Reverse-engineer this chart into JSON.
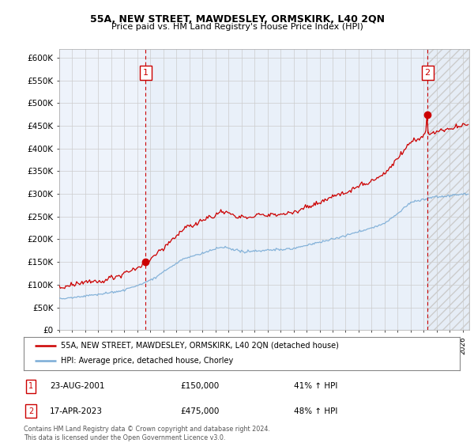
{
  "title": "55A, NEW STREET, MAWDESLEY, ORMSKIRK, L40 2QN",
  "subtitle": "Price paid vs. HM Land Registry's House Price Index (HPI)",
  "ylim": [
    0,
    620000
  ],
  "yticks": [
    0,
    50000,
    100000,
    150000,
    200000,
    250000,
    300000,
    350000,
    400000,
    450000,
    500000,
    550000,
    600000
  ],
  "xlim": [
    1995,
    2026.5
  ],
  "sale1_date": "23-AUG-2001",
  "sale1_price": 150000,
  "sale1_hpi": "41% ↑ HPI",
  "sale1_x": 2001.64,
  "sale2_date": "17-APR-2023",
  "sale2_price": 475000,
  "sale2_hpi": "48% ↑ HPI",
  "sale2_x": 2023.29,
  "legend_line1": "55A, NEW STREET, MAWDESLEY, ORMSKIRK, L40 2QN (detached house)",
  "legend_line2": "HPI: Average price, detached house, Chorley",
  "footer": "Contains HM Land Registry data © Crown copyright and database right 2024.\nThis data is licensed under the Open Government Licence v3.0.",
  "sale_color": "#cc0000",
  "hpi_color": "#7aacd6",
  "dashed_line_color": "#cc0000",
  "background_color": "#ffffff",
  "plot_bg_color": "#eef3fb",
  "grid_color": "#cccccc",
  "annotation_box_color": "#cc0000",
  "hatch_color": "#cccccc",
  "shade_color": "#dce8f5"
}
